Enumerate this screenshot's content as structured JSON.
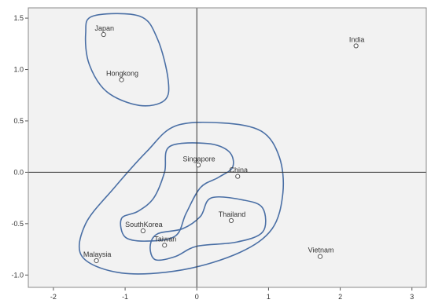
{
  "chart_data": {
    "type": "scatter",
    "title": "",
    "xlabel": "",
    "ylabel": "",
    "xlim": [
      -2.35,
      3.2
    ],
    "ylim": [
      -1.12,
      1.6
    ],
    "x_ticks": [
      -2,
      -1,
      0,
      1,
      2,
      3
    ],
    "y_ticks": [
      1.5,
      1.0,
      0.5,
      0.0,
      -0.5,
      -1.0
    ],
    "x_tick_labels": [
      "-2",
      "-1",
      "0",
      "1",
      "2",
      "3"
    ],
    "y_tick_labels": [
      "1.5",
      "1.0",
      "0.5",
      "0.0",
      "-0.5",
      "-1.0"
    ],
    "reference_lines": {
      "x": 0,
      "y": 0
    },
    "grid": false,
    "legend": "none",
    "plot_background": "#f2f2f2",
    "point_color": "#555555",
    "cluster_line_color": "#4a6fa5",
    "points": [
      {
        "label": "Japan",
        "x": -1.3,
        "y": 1.34
      },
      {
        "label": "Hongkong",
        "x": -1.05,
        "y": 0.9
      },
      {
        "label": "India",
        "x": 2.22,
        "y": 1.23
      },
      {
        "label": "Singapore",
        "x": 0.02,
        "y": 0.07
      },
      {
        "label": "China",
        "x": 0.57,
        "y": -0.04
      },
      {
        "label": "Thailand",
        "x": 0.48,
        "y": -0.47
      },
      {
        "label": "SouthKorea",
        "x": -0.75,
        "y": -0.57
      },
      {
        "label": "Taiwan",
        "x": -0.45,
        "y": -0.71
      },
      {
        "label": "Malaysia",
        "x": -1.4,
        "y": -0.86
      },
      {
        "label": "Vietnam",
        "x": 1.72,
        "y": -0.82
      }
    ],
    "cluster_contours": [
      [
        [
          -1.45,
          1.52
        ],
        [
          -0.8,
          1.52
        ],
        [
          -0.55,
          1.3
        ],
        [
          -0.4,
          0.9
        ],
        [
          -0.45,
          0.7
        ],
        [
          -0.8,
          0.65
        ],
        [
          -1.25,
          0.78
        ],
        [
          -1.5,
          1.05
        ],
        [
          -1.55,
          1.35
        ]
      ],
      [
        [
          -0.3,
          0.45
        ],
        [
          0.35,
          0.48
        ],
        [
          0.9,
          0.4
        ],
        [
          1.15,
          0.15
        ],
        [
          1.2,
          -0.2
        ],
        [
          1.05,
          -0.55
        ],
        [
          0.6,
          -0.78
        ],
        [
          -0.2,
          -0.95
        ],
        [
          -1.05,
          -0.98
        ],
        [
          -1.6,
          -0.82
        ],
        [
          -1.55,
          -0.5
        ],
        [
          -1.15,
          -0.15
        ],
        [
          -0.7,
          0.2
        ]
      ],
      [
        [
          -0.38,
          0.25
        ],
        [
          0.15,
          0.28
        ],
        [
          0.45,
          0.2
        ],
        [
          0.5,
          0.05
        ],
        [
          0.3,
          -0.05
        ],
        [
          0.05,
          -0.15
        ],
        [
          -0.15,
          -0.4
        ],
        [
          -0.3,
          -0.62
        ],
        [
          -0.7,
          -0.67
        ],
        [
          -1.0,
          -0.63
        ],
        [
          -1.05,
          -0.45
        ],
        [
          -0.82,
          -0.38
        ],
        [
          -0.6,
          -0.25
        ],
        [
          -0.45,
          0.0
        ]
      ],
      [
        [
          0.2,
          -0.25
        ],
        [
          0.65,
          -0.27
        ],
        [
          0.92,
          -0.35
        ],
        [
          0.92,
          -0.58
        ],
        [
          0.55,
          -0.68
        ],
        [
          0.0,
          -0.72
        ],
        [
          -0.3,
          -0.82
        ],
        [
          -0.58,
          -0.85
        ],
        [
          -0.65,
          -0.72
        ],
        [
          -0.55,
          -0.6
        ],
        [
          -0.2,
          -0.55
        ],
        [
          0.05,
          -0.43
        ]
      ]
    ]
  }
}
